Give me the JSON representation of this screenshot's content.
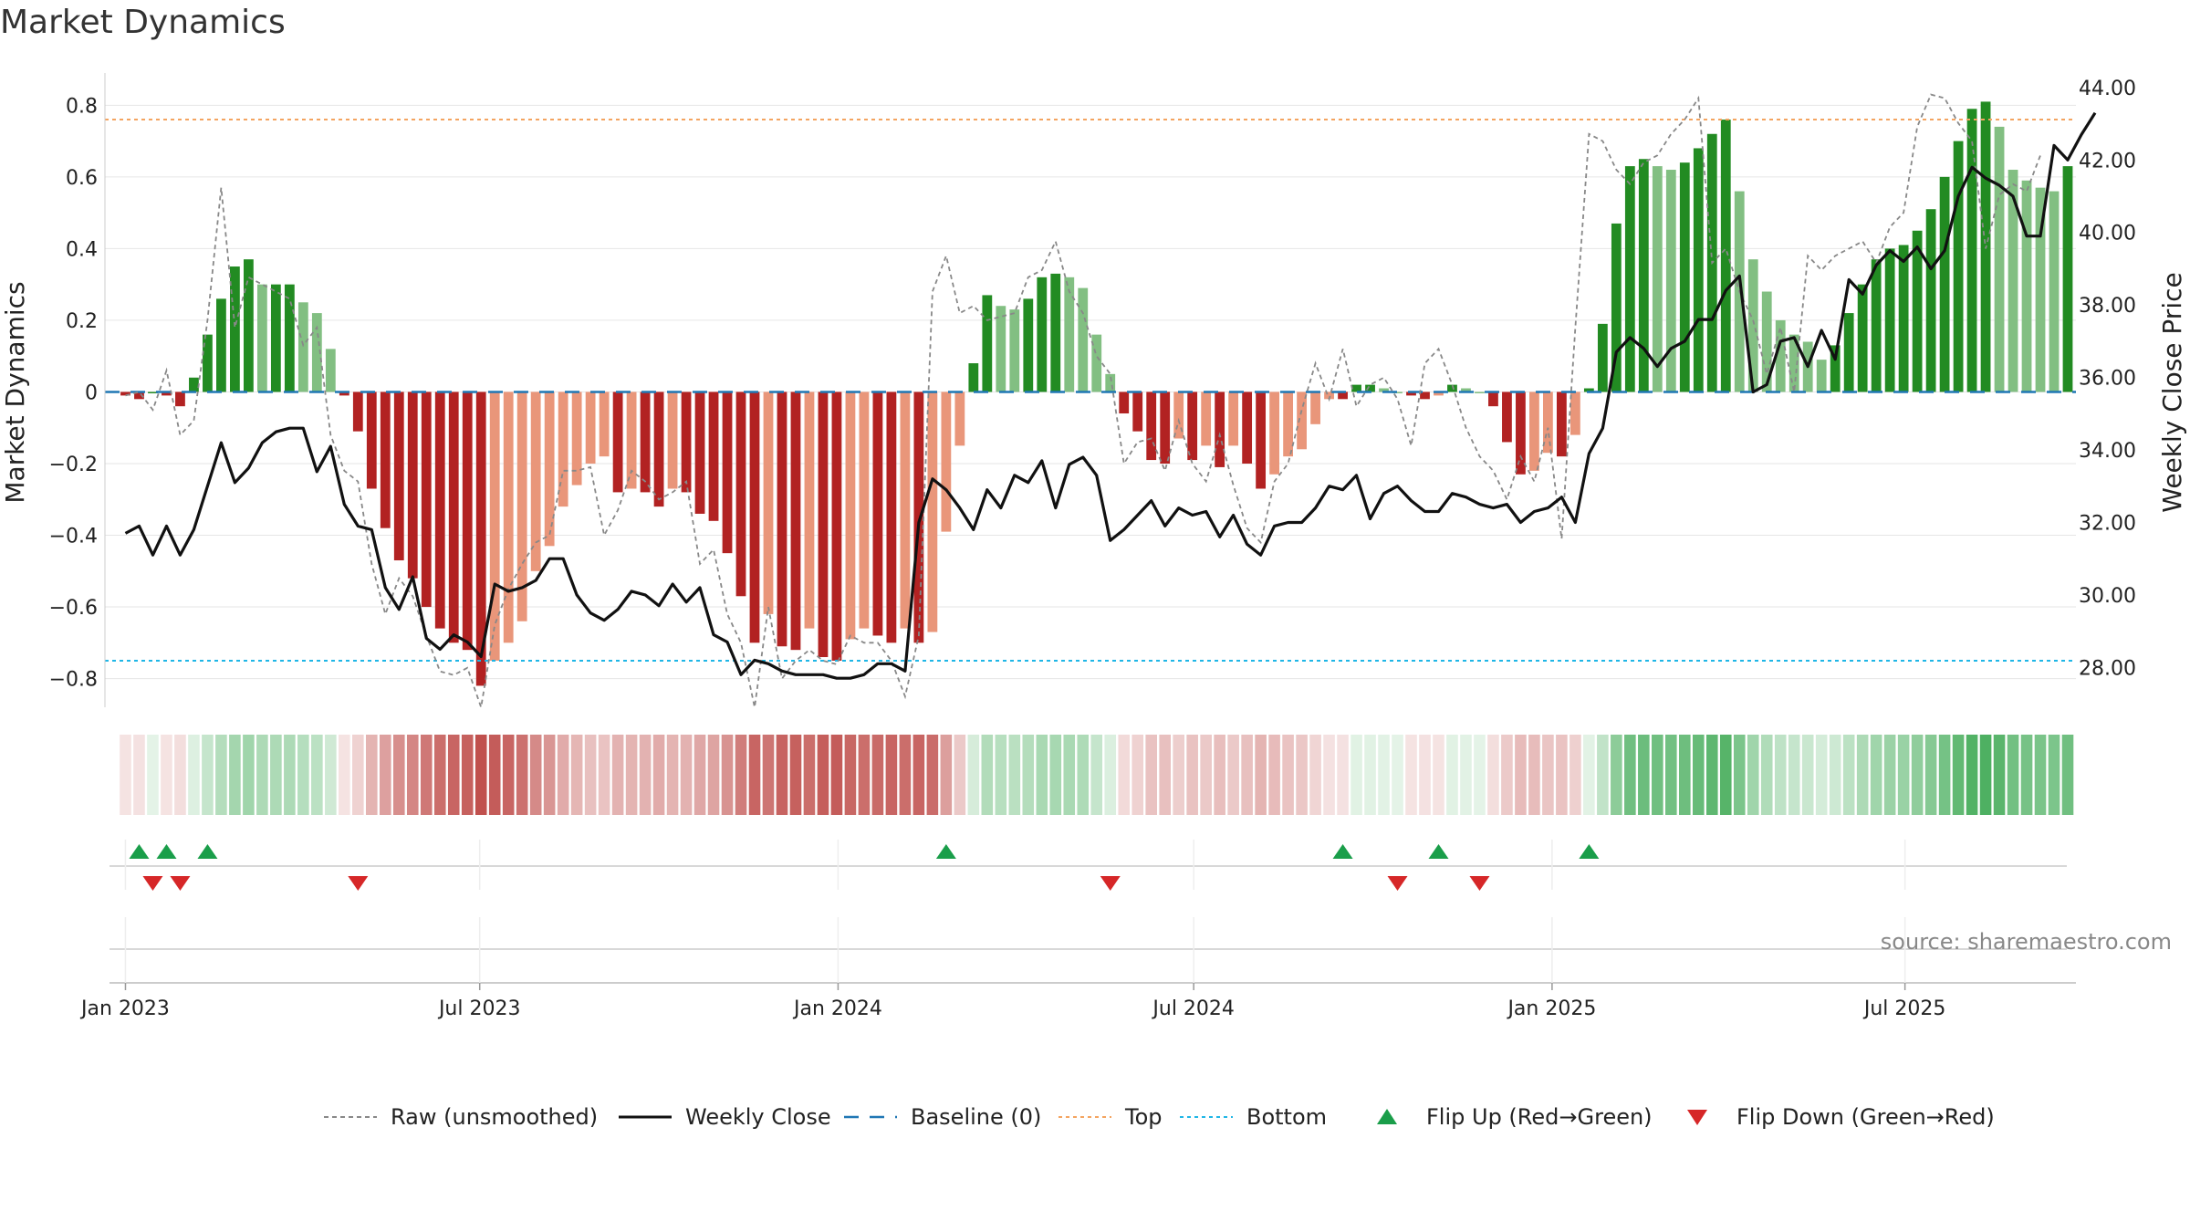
{
  "chart_data": {
    "type": "bar",
    "title": "Market Dynamics",
    "ylabel_left": "Market Dynamics",
    "ylabel_right": "Weekly Close Price",
    "source": "source: sharemaestro.com",
    "y_left_ticks": [
      "0.8",
      "0.6",
      "0.4",
      "0.2",
      "0",
      "−0.2",
      "−0.4",
      "−0.6",
      "−0.8"
    ],
    "y_left_tick_values": [
      0.8,
      0.6,
      0.4,
      0.2,
      0,
      -0.2,
      -0.4,
      -0.6,
      -0.8
    ],
    "y_right_ticks": [
      "44.00",
      "42.00",
      "40.00",
      "38.00",
      "36.00",
      "34.00",
      "32.00",
      "30.00",
      "28.00"
    ],
    "y_right_tick_values": [
      44,
      42,
      40,
      38,
      36,
      34,
      32,
      30,
      28
    ],
    "ylim_left": [
      -0.88,
      0.89
    ],
    "ylim_right": [
      26.9,
      44.4
    ],
    "x_range_weeks": [
      -1.5,
      142.6
    ],
    "x_ticks": [
      {
        "label": "Jan 2023",
        "week": 0
      },
      {
        "label": "Jul 2023",
        "week": 25.9
      },
      {
        "label": "Jan 2024",
        "week": 52.1
      },
      {
        "label": "Jul 2024",
        "week": 78.1
      },
      {
        "label": "Jan 2025",
        "week": 104.3
      },
      {
        "label": "Jul 2025",
        "week": 130.1
      }
    ],
    "first_bar_date": "2022-12-19",
    "top_level": 0.76,
    "bottom_level": -0.75,
    "baseline": 0,
    "dynamics": [
      -0.01,
      -0.02,
      0.0,
      -0.01,
      -0.04,
      0.04,
      0.16,
      0.26,
      0.35,
      0.37,
      0.3,
      0.3,
      0.3,
      0.25,
      0.22,
      0.12,
      -0.01,
      -0.11,
      -0.27,
      -0.38,
      -0.47,
      -0.52,
      -0.6,
      -0.66,
      -0.7,
      -0.72,
      -0.82,
      -0.75,
      -0.7,
      -0.64,
      -0.5,
      -0.43,
      -0.32,
      -0.26,
      -0.2,
      -0.18,
      -0.28,
      -0.27,
      -0.28,
      -0.32,
      -0.27,
      -0.28,
      -0.34,
      -0.36,
      -0.45,
      -0.57,
      -0.7,
      -0.62,
      -0.71,
      -0.72,
      -0.66,
      -0.74,
      -0.75,
      -0.69,
      -0.66,
      -0.68,
      -0.7,
      -0.66,
      -0.7,
      -0.67,
      -0.39,
      -0.15,
      0.08,
      0.27,
      0.24,
      0.23,
      0.26,
      0.32,
      0.33,
      0.32,
      0.29,
      0.16,
      0.05,
      -0.06,
      -0.11,
      -0.19,
      -0.2,
      -0.13,
      -0.19,
      -0.15,
      -0.21,
      -0.15,
      -0.2,
      -0.27,
      -0.23,
      -0.18,
      -0.16,
      -0.09,
      -0.02,
      -0.02,
      0.02,
      0.02,
      0.01,
      0.0,
      -0.01,
      -0.02,
      -0.01,
      0.02,
      0.01,
      0.0,
      -0.04,
      -0.14,
      -0.23,
      -0.22,
      -0.17,
      -0.18,
      -0.12,
      0.01,
      0.19,
      0.47,
      0.63,
      0.65,
      0.63,
      0.62,
      0.64,
      0.68,
      0.72,
      0.76,
      0.56,
      0.37,
      0.28,
      0.2,
      0.16,
      0.14,
      0.09,
      0.13,
      0.22,
      0.3,
      0.37,
      0.4,
      0.41,
      0.45,
      0.51,
      0.6,
      0.7,
      0.79,
      0.81,
      0.74,
      0.62,
      0.59,
      0.57,
      0.56,
      0.63
    ],
    "raw": [
      -0.01,
      0.0,
      -0.05,
      0.06,
      -0.12,
      -0.08,
      0.2,
      0.57,
      0.18,
      0.32,
      0.3,
      0.28,
      0.26,
      0.13,
      0.18,
      -0.12,
      -0.22,
      -0.25,
      -0.48,
      -0.62,
      -0.52,
      -0.57,
      -0.68,
      -0.78,
      -0.79,
      -0.77,
      -0.88,
      -0.65,
      -0.55,
      -0.48,
      -0.42,
      -0.4,
      -0.22,
      -0.22,
      -0.21,
      -0.4,
      -0.33,
      -0.22,
      -0.25,
      -0.3,
      -0.28,
      -0.25,
      -0.48,
      -0.44,
      -0.62,
      -0.7,
      -0.88,
      -0.6,
      -0.8,
      -0.75,
      -0.72,
      -0.75,
      -0.76,
      -0.68,
      -0.7,
      -0.7,
      -0.75,
      -0.85,
      -0.68,
      0.28,
      0.38,
      0.22,
      0.24,
      0.2,
      0.21,
      0.22,
      0.32,
      0.34,
      0.42,
      0.28,
      0.22,
      0.1,
      0.05,
      -0.2,
      -0.14,
      -0.13,
      -0.22,
      -0.08,
      -0.2,
      -0.25,
      -0.12,
      -0.26,
      -0.38,
      -0.42,
      -0.25,
      -0.2,
      -0.05,
      0.08,
      -0.02,
      0.12,
      -0.04,
      0.02,
      0.04,
      -0.02,
      -0.15,
      0.08,
      0.12,
      0.02,
      -0.1,
      -0.18,
      -0.22,
      -0.3,
      -0.18,
      -0.25,
      -0.1,
      -0.41,
      0.18,
      0.72,
      0.7,
      0.62,
      0.58,
      0.64,
      0.66,
      0.72,
      0.76,
      0.82,
      0.36,
      0.4,
      0.28,
      0.2,
      0.05,
      0.18,
      0.0,
      0.38,
      0.34,
      0.38,
      0.4,
      0.42,
      0.36,
      0.46,
      0.5,
      0.74,
      0.83,
      0.82,
      0.75,
      0.7,
      0.4,
      0.55,
      0.58,
      0.56,
      0.66
    ],
    "weekly_close": [
      31.7,
      31.9,
      31.1,
      31.9,
      31.1,
      31.8,
      33.0,
      34.2,
      33.1,
      33.5,
      34.2,
      34.5,
      34.6,
      34.6,
      33.4,
      34.1,
      32.5,
      31.9,
      31.8,
      30.2,
      29.6,
      30.5,
      28.8,
      28.5,
      28.9,
      28.7,
      28.3,
      30.3,
      30.1,
      30.2,
      30.4,
      31.0,
      31.0,
      30.0,
      29.5,
      29.3,
      29.6,
      30.1,
      30.0,
      29.7,
      30.3,
      29.8,
      30.2,
      28.9,
      28.7,
      27.8,
      28.2,
      28.1,
      27.9,
      27.8,
      27.8,
      27.8,
      27.7,
      27.7,
      27.8,
      28.1,
      28.1,
      27.9,
      32.0,
      33.2,
      32.9,
      32.4,
      31.8,
      32.9,
      32.4,
      33.3,
      33.1,
      33.7,
      32.4,
      33.6,
      33.8,
      33.3,
      31.5,
      31.8,
      32.2,
      32.6,
      31.9,
      32.4,
      32.2,
      32.3,
      31.6,
      32.2,
      31.4,
      31.1,
      31.9,
      32.0,
      32.0,
      32.4,
      33.0,
      32.9,
      33.3,
      32.1,
      32.8,
      33.0,
      32.6,
      32.3,
      32.3,
      32.8,
      32.7,
      32.5,
      32.4,
      32.5,
      32.0,
      32.3,
      32.4,
      32.7,
      32.0,
      33.9,
      34.6,
      36.7,
      37.1,
      36.8,
      36.3,
      36.8,
      37.0,
      37.6,
      37.6,
      38.4,
      38.8,
      35.6,
      35.8,
      37.0,
      37.1,
      36.3,
      37.3,
      36.5,
      38.7,
      38.3,
      39.1,
      39.5,
      39.2,
      39.6,
      39.0,
      39.5,
      41.0,
      41.8,
      41.5,
      41.3,
      41.0,
      39.9,
      39.9,
      42.4,
      42.0,
      42.7,
      43.3
    ],
    "flip_up_weeks": [
      1,
      3,
      6,
      60,
      89,
      96,
      107
    ],
    "flip_down_weeks": [
      2,
      4,
      17,
      72,
      93,
      99
    ],
    "legend": [
      {
        "label": "Raw (unsmoothed)",
        "style": "dashed-gray"
      },
      {
        "label": "Weekly Close",
        "style": "solid-black"
      },
      {
        "label": "Baseline (0)",
        "style": "dashed-blue"
      },
      {
        "label": "Top",
        "style": "dotted-orange"
      },
      {
        "label": "Bottom",
        "style": "dotted-cyan"
      },
      {
        "label": "Flip Up (Red→Green)",
        "style": "triangle-up-green"
      },
      {
        "label": "Flip Down (Green→Red)",
        "style": "triangle-down-red"
      }
    ],
    "grid": true,
    "legend_position": "bottom"
  },
  "colors": {
    "strong_green": "#228b22",
    "light_green": "#82bf82",
    "strong_red": "#b22222",
    "light_red": "#e9967a",
    "raw_line": "#888888",
    "close_line": "#111111",
    "baseline": "#1f77b4",
    "top": "#f4a460",
    "bottom": "#1fb6e6",
    "flip_up": "#1a9e4a",
    "flip_down": "#d62728",
    "band_green": "#4caf60",
    "band_red": "#c0504d"
  }
}
